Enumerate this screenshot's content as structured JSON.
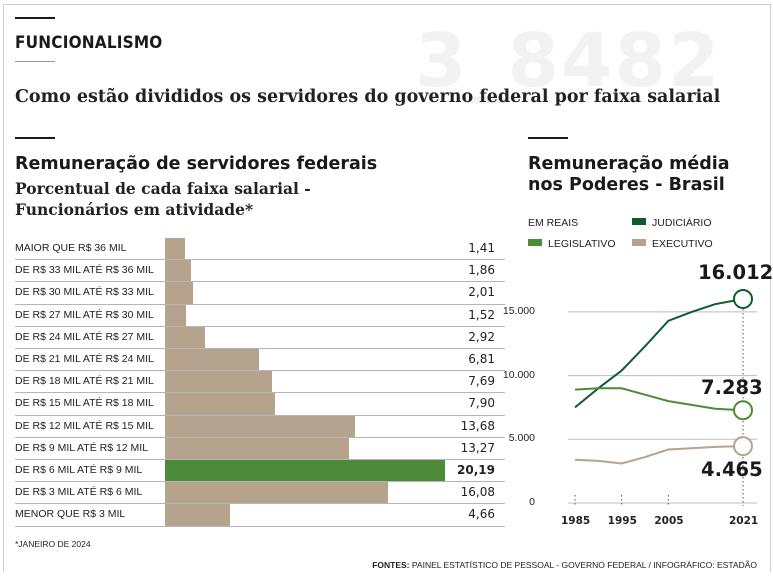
{
  "header": {
    "section_tag": "FUNCIONALISMO",
    "watermark": "3_8482",
    "subtitle": "Como estão divididos os servidores do governo federal por faixa salarial"
  },
  "left_panel": {
    "title": "Remuneração de servidores federais",
    "subtitle_line1": "Porcentual de cada faixa salarial -",
    "subtitle_line2": "Funcionários em atividade*"
  },
  "right_panel": {
    "title_line1": "Remuneração média",
    "title_line2": "nos Poderes - Brasil"
  },
  "footnote": "*JANEIRO DE 2024",
  "sources": {
    "label": "FONTES:",
    "text": "PAINEL ESTATÍSTICO DE PESSOAL - GOVERNO FEDERAL / INFOGRÁFICO: ESTADÃO"
  },
  "colors": {
    "bar": "#b5a38e",
    "bar_highlight": "#4d8b3a",
    "judiciario": "#0f5b2e",
    "legislativo": "#4d8b3a",
    "executivo": "#b5a38e"
  },
  "chart_data": [
    {
      "type": "bar",
      "orientation": "horizontal",
      "title": "Remuneração de servidores federais",
      "subtitle": "Porcentual de cada faixa salarial - Funcionários em atividade*",
      "categories": [
        "MAIOR QUE R$ 36 MIL",
        "DE R$ 33 MIL ATÉ R$ 36 MIL",
        "DE R$ 30 MIL ATÉ R$ 33 MIL",
        "DE R$ 27 MIL ATÉ R$ 30 MIL",
        "DE R$ 24 MIL ATÉ R$ 27 MIL",
        "DE R$ 21 MIL ATÉ R$ 24 MIL",
        "DE R$ 18 MIL ATÉ R$ 21 MIL",
        "DE R$ 15 MIL ATÉ R$ 18 MIL",
        "DE R$ 12 MIL ATÉ R$ 15 MIL",
        "DE R$ 9 MIL ATÉ R$ 12 MIL",
        "DE R$ 6 MIL ATÉ R$ 9 MIL",
        "DE R$ 3 MIL ATÉ R$ 6 MIL",
        "MENOR QUE R$ 3 MIL"
      ],
      "values": [
        1.41,
        1.86,
        2.01,
        1.52,
        2.92,
        6.81,
        7.69,
        7.9,
        13.68,
        13.27,
        20.19,
        16.08,
        4.66
      ],
      "value_labels": [
        "1,41",
        "1,86",
        "2,01",
        "1,52",
        "2,92",
        "6,81",
        "7,69",
        "7,90",
        "13,68",
        "13,27",
        "20,19",
        "16,08",
        "4,66"
      ],
      "highlight_category": "DE R$ 6 MIL ATÉ R$ 9 MIL",
      "xlim": [
        0,
        20.19
      ]
    },
    {
      "type": "line",
      "title": "Remuneração média nos Poderes - Brasil",
      "unit_label": "EM REAIS",
      "x": [
        1985,
        1990,
        1995,
        2000,
        2005,
        2010,
        2015,
        2021
      ],
      "x_tick_labels": [
        "1985",
        "1995",
        "2005",
        "2021"
      ],
      "ylim": [
        0,
        17500
      ],
      "y_ticks": [
        0,
        5000,
        10000,
        15000
      ],
      "y_tick_labels": [
        "0",
        "5.000",
        "10.000",
        "15.000"
      ],
      "series": [
        {
          "name": "JUDICIÁRIO",
          "color": "#0f5b2e",
          "values": [
            7500,
            9000,
            10400,
            12300,
            14300,
            15000,
            15600,
            16012
          ],
          "end_label": "16.012"
        },
        {
          "name": "LEGISLATIVO",
          "color": "#4d8b3a",
          "values": [
            8900,
            9000,
            9000,
            8500,
            8000,
            7700,
            7400,
            7283
          ],
          "end_label": "7.283"
        },
        {
          "name": "EXECUTIVO",
          "color": "#b5a38e",
          "values": [
            3400,
            3300,
            3100,
            3600,
            4200,
            4300,
            4400,
            4465
          ],
          "end_label": "4.465"
        }
      ]
    }
  ]
}
